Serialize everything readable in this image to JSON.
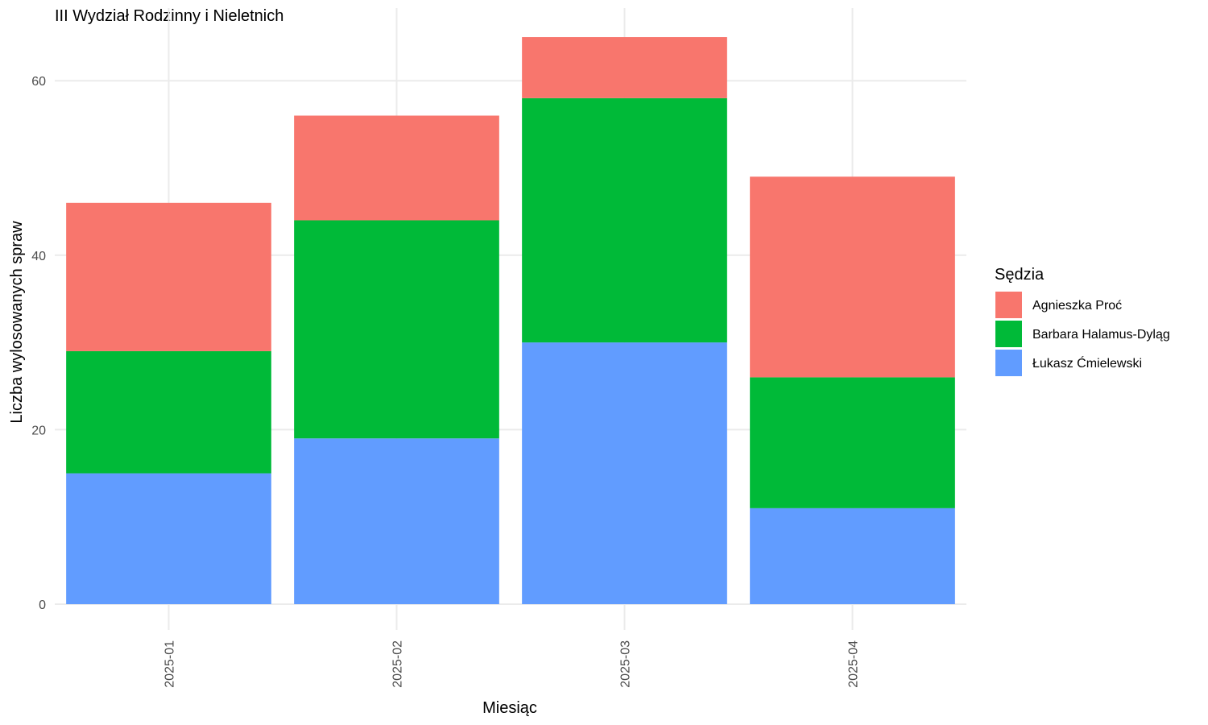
{
  "chart_data": {
    "type": "bar",
    "stacked": true,
    "title": "III Wydział Rodzinny i Nieletnich",
    "xlabel": "Miesiąc",
    "ylabel": "Liczba wylosowanych spraw",
    "categories": [
      "2025-01",
      "2025-02",
      "2025-03",
      "2025-04"
    ],
    "ylim": [
      0,
      65
    ],
    "yticks": [
      0,
      20,
      40,
      60
    ],
    "grid": true,
    "legend": {
      "title": "Sędzia",
      "position": "right"
    },
    "series": [
      {
        "name": "Łukasz Ćmielewski",
        "color": "#619CFF",
        "values": [
          15,
          19,
          30,
          11
        ]
      },
      {
        "name": "Barbara Halamus-Dyląg",
        "color": "#00BA38",
        "values": [
          14,
          25,
          28,
          15
        ]
      },
      {
        "name": "Agnieszka Proć",
        "color": "#F8766D",
        "values": [
          17,
          12,
          7,
          23
        ]
      }
    ],
    "legend_order": [
      "Agnieszka Proć",
      "Barbara Halamus-Dyląg",
      "Łukasz Ćmielewski"
    ]
  }
}
